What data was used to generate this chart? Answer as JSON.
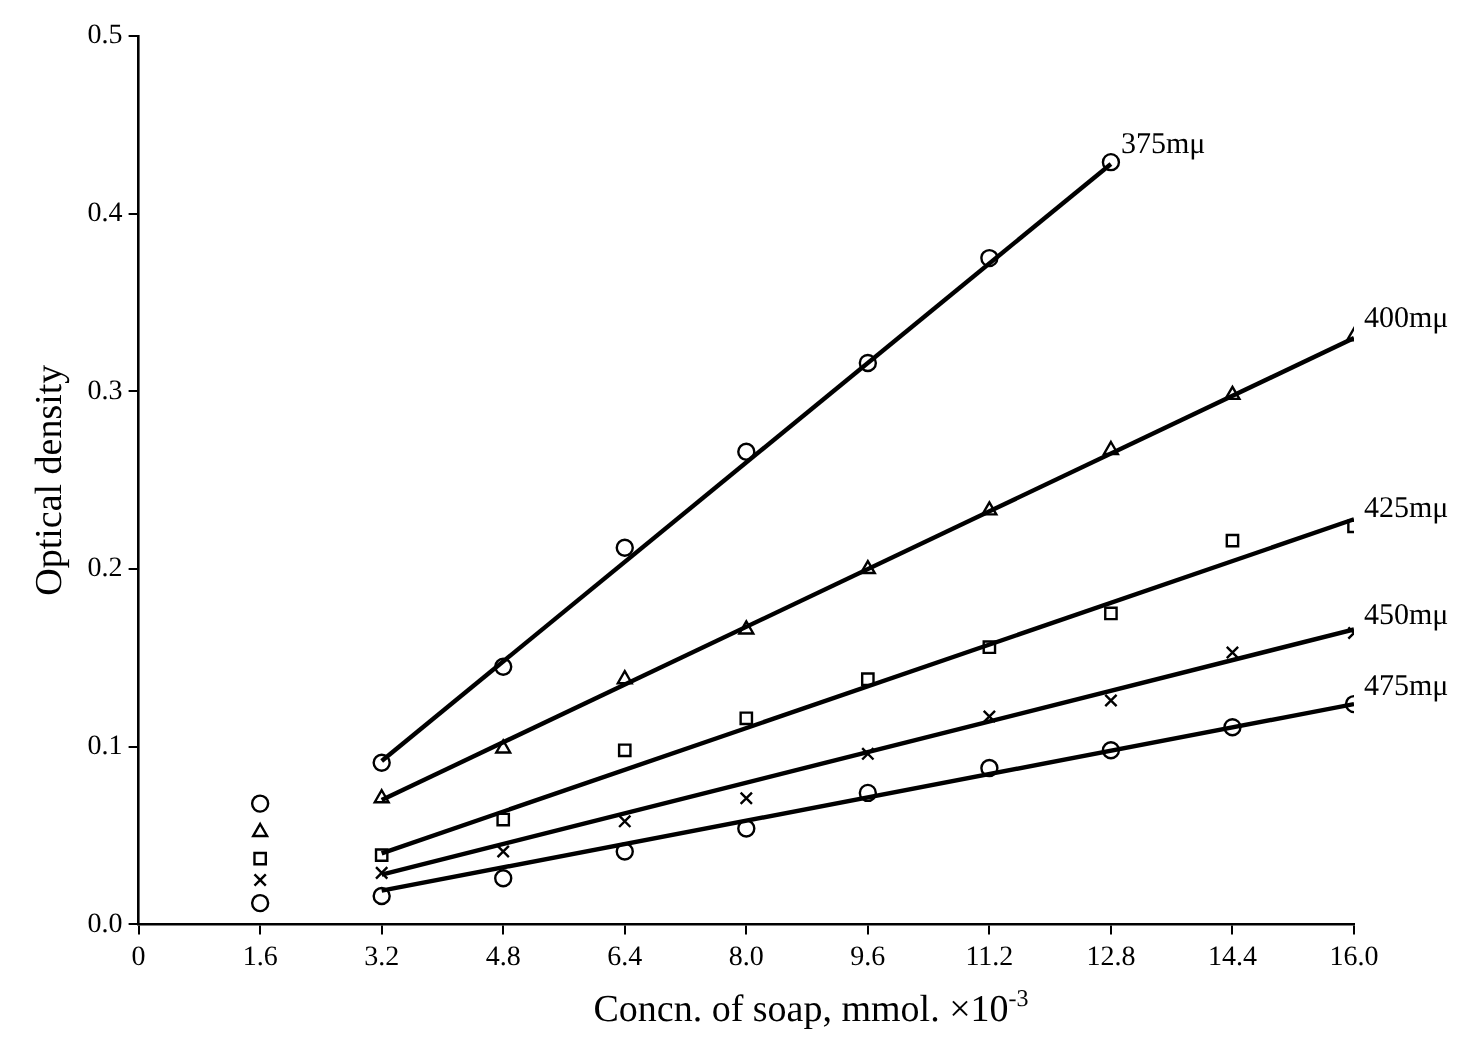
{
  "chart_data": {
    "type": "scatter",
    "xlabel": "Concn. of soap, mmol. ×10$^{-3}$",
    "ylabel": "Optical density",
    "xlim": [
      0,
      16
    ],
    "xticks": [
      0,
      1.6,
      3.2,
      4.8,
      6.4,
      {
        "value": 8,
        "label": "8.0"
      },
      9.6,
      11.2,
      12.8,
      14.4,
      {
        "value": 16,
        "label": "16.0"
      }
    ],
    "ylim": [
      0,
      0.5
    ],
    "yticks": [
      {
        "value": 0,
        "label": "0.0"
      },
      0.1,
      0.2,
      0.3,
      0.4,
      0.5
    ],
    "grid": false,
    "legend": false,
    "series": [
      {
        "name": "375mμ",
        "type": "scatter",
        "marker": "circle",
        "color": "#000000",
        "x": [
          1.6,
          3.2,
          4.8,
          6.4,
          8.0,
          9.6,
          11.2,
          12.8
        ],
        "values": [
          0.068,
          0.091,
          0.145,
          0.212,
          0.266,
          0.316,
          0.375,
          0.429
        ]
      },
      {
        "name": "400mμ",
        "type": "scatter",
        "marker": "triangle",
        "color": "#000000",
        "x": [
          1.6,
          3.2,
          4.8,
          6.4,
          8.0,
          9.6,
          11.2,
          12.8,
          14.4,
          16.0
        ],
        "values": [
          0.052,
          0.071,
          0.099,
          0.138,
          0.166,
          0.2,
          0.233,
          0.267,
          0.298,
          0.331
        ]
      },
      {
        "name": "425mμ",
        "type": "scatter",
        "marker": "square",
        "color": "#000000",
        "x": [
          1.6,
          3.2,
          4.8,
          6.4,
          8.0,
          9.6,
          11.2,
          12.8,
          14.4,
          16.0
        ],
        "values": [
          0.037,
          0.039,
          0.059,
          0.098,
          0.116,
          0.138,
          0.156,
          0.175,
          0.216,
          0.224
        ]
      },
      {
        "name": "450mμ",
        "type": "scatter",
        "marker": "cross",
        "color": "#000000",
        "x": [
          1.6,
          3.2,
          4.8,
          6.4,
          8.0,
          9.6,
          11.2,
          12.8,
          14.4,
          16.0
        ],
        "values": [
          0.025,
          0.029,
          0.041,
          0.058,
          0.071,
          0.096,
          0.117,
          0.126,
          0.153,
          0.164
        ]
      },
      {
        "name": "475mμ",
        "type": "scatter",
        "marker": "circle",
        "color": "#000000",
        "x": [
          1.6,
          3.2,
          4.8,
          6.4,
          8.0,
          9.6,
          11.2,
          12.8,
          14.4,
          16.0
        ],
        "values": [
          0.012,
          0.016,
          0.026,
          0.041,
          0.054,
          0.074,
          0.088,
          0.098,
          0.111,
          0.124
        ]
      },
      {
        "type": "line",
        "marker": "none",
        "line_style": "solid",
        "color": "#000000",
        "x": [
          3.2,
          12.8
        ],
        "values": [
          0.092,
          0.428
        ]
      },
      {
        "type": "line",
        "marker": "none",
        "line_style": "solid",
        "color": "#000000",
        "x": [
          3.2,
          16.0
        ],
        "values": [
          0.07,
          0.33
        ]
      },
      {
        "type": "line",
        "marker": "none",
        "line_style": "solid",
        "color": "#000000",
        "x": [
          3.2,
          16.0
        ],
        "values": [
          0.04,
          0.228
        ]
      },
      {
        "type": "line",
        "marker": "none",
        "line_style": "solid",
        "color": "#000000",
        "x": [
          3.2,
          16.0
        ],
        "values": [
          0.028,
          0.166
        ]
      },
      {
        "type": "line",
        "marker": "none",
        "line_style": "solid",
        "color": "#000000",
        "x": [
          3.2,
          16.0
        ],
        "values": [
          0.019,
          0.124
        ]
      }
    ]
  }
}
